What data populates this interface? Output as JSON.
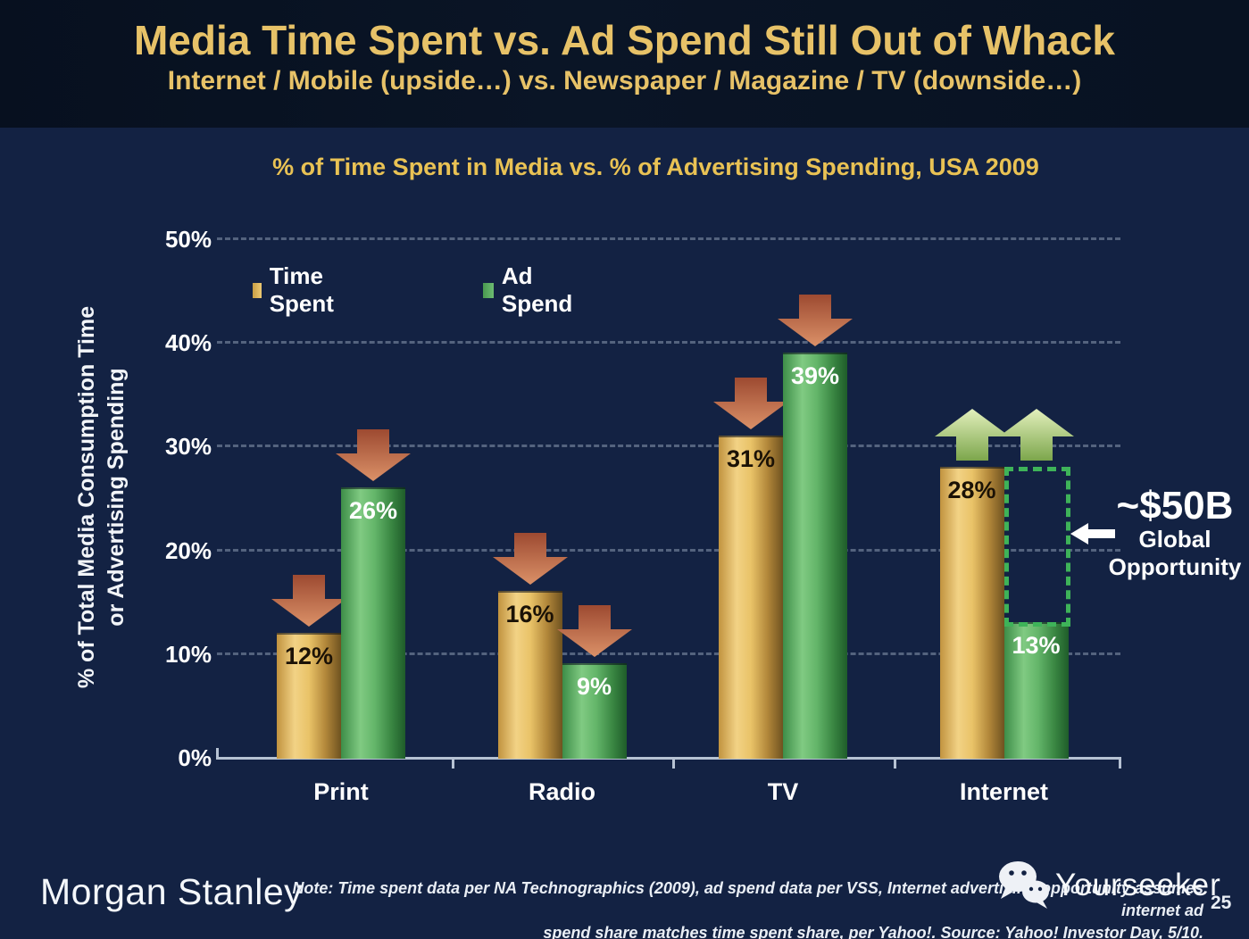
{
  "header": {
    "title": "Media Time Spent vs. Ad Spend Still Out of Whack",
    "subtitle": "Internet / Mobile (upside…) vs. Newspaper / Magazine / TV (downside…)"
  },
  "chart_data": {
    "type": "bar",
    "title": "% of Time Spent in Media vs. % of Advertising Spending, USA 2009",
    "categories": [
      "Print",
      "Radio",
      "TV",
      "Internet"
    ],
    "series": [
      {
        "name": "Time Spent",
        "color": "#d9ad50",
        "values": [
          12,
          16,
          31,
          28
        ],
        "labels": [
          "12%",
          "16%",
          "31%",
          "28%"
        ]
      },
      {
        "name": "Ad Spend",
        "color": "#55a95e",
        "values": [
          26,
          9,
          39,
          13
        ],
        "labels": [
          "26%",
          "9%",
          "39%",
          "13%"
        ]
      }
    ],
    "y_ticks": [
      "0%",
      "10%",
      "20%",
      "30%",
      "40%",
      "50%"
    ],
    "ylim": [
      0,
      50
    ],
    "y_axis_label_line1": "% of Total Media Consumption Time",
    "y_axis_label_line2": "or Advertising Spending",
    "grid": "horizontal dashed",
    "legend_position": "top-left inside plot",
    "trend_by_category": [
      "down",
      "down",
      "down",
      "up"
    ],
    "trend_colors": {
      "down": "red-orange",
      "up": "light-green"
    },
    "annotation": {
      "value_text": "~$50B",
      "label_line1": "Global",
      "label_line2": "Opportunity",
      "box_category": "Internet",
      "box_series": "Ad Spend",
      "box_from_pct": 28,
      "box_to_pct": 13
    }
  },
  "footer": {
    "brand": "Morgan Stanley",
    "note_line1": "Note: Time spent data per NA Technographics (2009), ad spend data per VSS, Internet advertising opportunity assumes internet ad",
    "note_line2": "spend share matches time spent share, per Yahoo!. Source: Yahoo! Investor Day, 5/10.",
    "watermark": "Yourseeker",
    "page_number": "25"
  }
}
